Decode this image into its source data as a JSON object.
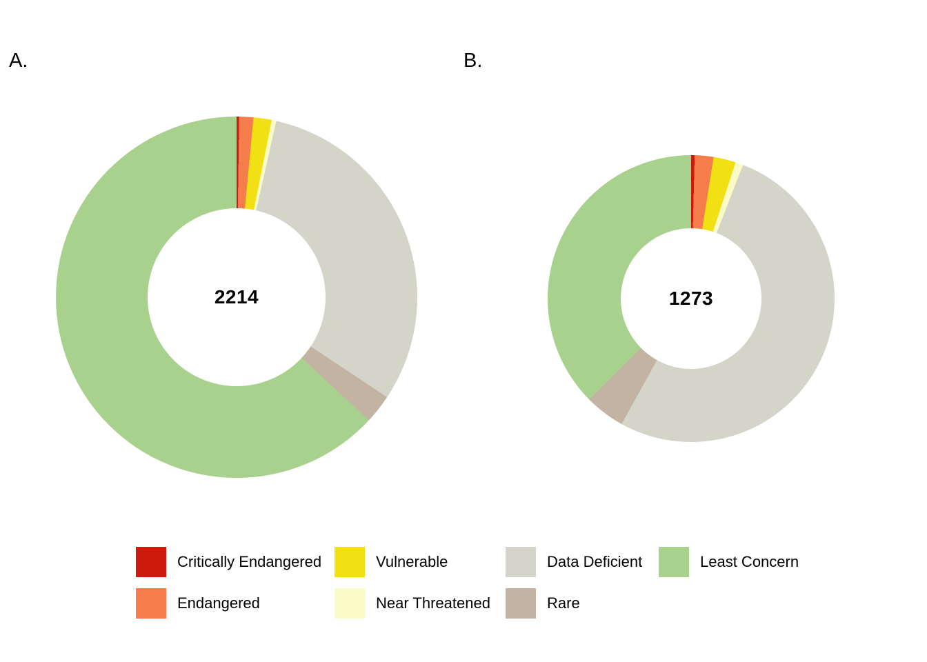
{
  "figure": {
    "background": "#ffffff",
    "panels": [
      {
        "label": "A."
      },
      {
        "label": "B."
      }
    ]
  },
  "legend": {
    "position": "bottom",
    "items": [
      {
        "label": "Critically Endangered",
        "color": "#cc1b0d"
      },
      {
        "label": "Endangered",
        "color": "#f57d4c"
      },
      {
        "label": "Vulnerable",
        "color": "#f1e013"
      },
      {
        "label": "Near Threatened",
        "color": "#fafbc6"
      },
      {
        "label": "Data Deficient",
        "color": "#d4d4c8"
      },
      {
        "label": "Rare",
        "color": "#c2b3a3"
      },
      {
        "label": "Least Concern",
        "color": "#a9d18e"
      }
    ]
  },
  "chart_data": [
    {
      "type": "pie",
      "subtype": "donut",
      "panel_label": "A.",
      "center_label": "2214",
      "total": 2214,
      "start_angle_deg": 0,
      "direction": "clockwise",
      "categories": [
        "Critically Endangered",
        "Endangered",
        "Vulnerable",
        "Near Threatened",
        "Data Deficient",
        "Rare",
        "Least Concern"
      ],
      "values": [
        5,
        28,
        36,
        9,
        682,
        58,
        1396
      ],
      "colors": [
        "#cc1b0d",
        "#f57d4c",
        "#f1e013",
        "#fafbc6",
        "#d4d4c8",
        "#c2b3a3",
        "#a9d18e"
      ],
      "note": "values estimated from arc angles; only the total 2214 is printed on the chart"
    },
    {
      "type": "pie",
      "subtype": "donut",
      "panel_label": "B.",
      "center_label": "1273",
      "total": 1273,
      "start_angle_deg": 0,
      "direction": "clockwise",
      "categories": [
        "Critically Endangered",
        "Endangered",
        "Vulnerable",
        "Near Threatened",
        "Data Deficient",
        "Rare",
        "Least Concern"
      ],
      "values": [
        5,
        27,
        32,
        11,
        664,
        58,
        476
      ],
      "colors": [
        "#cc1b0d",
        "#f57d4c",
        "#f1e013",
        "#fafbc6",
        "#d4d4c8",
        "#c2b3a3",
        "#a9d18e"
      ],
      "note": "values estimated from arc angles; only the total 1273 is printed on the chart"
    }
  ]
}
